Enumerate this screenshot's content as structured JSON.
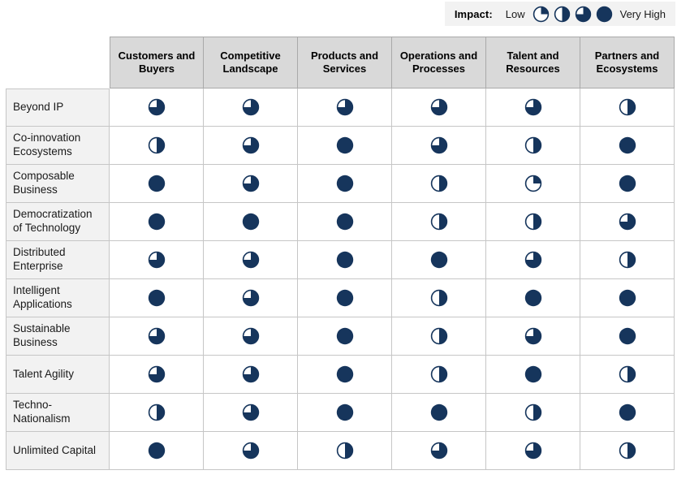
{
  "legend": {
    "title": "Impact:",
    "low_label": "Low",
    "high_label": "Very High",
    "levels": [
      25,
      50,
      75,
      100
    ]
  },
  "chart_data": {
    "type": "heatmap",
    "glyph": "harvey-ball",
    "unit": "percent-filled",
    "legend": {
      "title": "Impact:",
      "min_label": "Low",
      "max_label": "Very High",
      "scale": [
        25,
        50,
        75,
        100
      ]
    },
    "categories": [
      "Customers and Buyers",
      "Competitive Landscape",
      "Products and Services",
      "Operations and Processes",
      "Talent and Resources",
      "Partners and Ecosystems"
    ],
    "series": [
      {
        "name": "Beyond IP",
        "values": [
          75,
          75,
          75,
          75,
          75,
          50
        ]
      },
      {
        "name": "Co-innovation Ecosystems",
        "values": [
          50,
          75,
          100,
          75,
          50,
          100
        ]
      },
      {
        "name": "Composable Business",
        "values": [
          100,
          75,
          100,
          50,
          25,
          100
        ]
      },
      {
        "name": "Democratization of Technology",
        "values": [
          100,
          100,
          100,
          50,
          50,
          75
        ]
      },
      {
        "name": "Distributed Enterprise",
        "values": [
          75,
          75,
          100,
          100,
          75,
          50
        ]
      },
      {
        "name": "Intelligent Applications",
        "values": [
          100,
          75,
          100,
          50,
          100,
          100
        ]
      },
      {
        "name": "Sustainable Business",
        "values": [
          75,
          75,
          100,
          50,
          75,
          100
        ]
      },
      {
        "name": "Talent Agility",
        "values": [
          75,
          75,
          100,
          50,
          100,
          50
        ]
      },
      {
        "name": "Techno-Nationalism",
        "values": [
          50,
          75,
          100,
          100,
          50,
          100
        ]
      },
      {
        "name": "Unlimited Capital",
        "values": [
          100,
          75,
          50,
          75,
          75,
          50
        ]
      }
    ],
    "colors": {
      "ball": "#16355C",
      "header_bg": "#d9d9d9",
      "row_label_bg": "#f2f2f2",
      "legend_bg": "#f2f2f2",
      "grid_border": "#c6c6c6"
    }
  }
}
